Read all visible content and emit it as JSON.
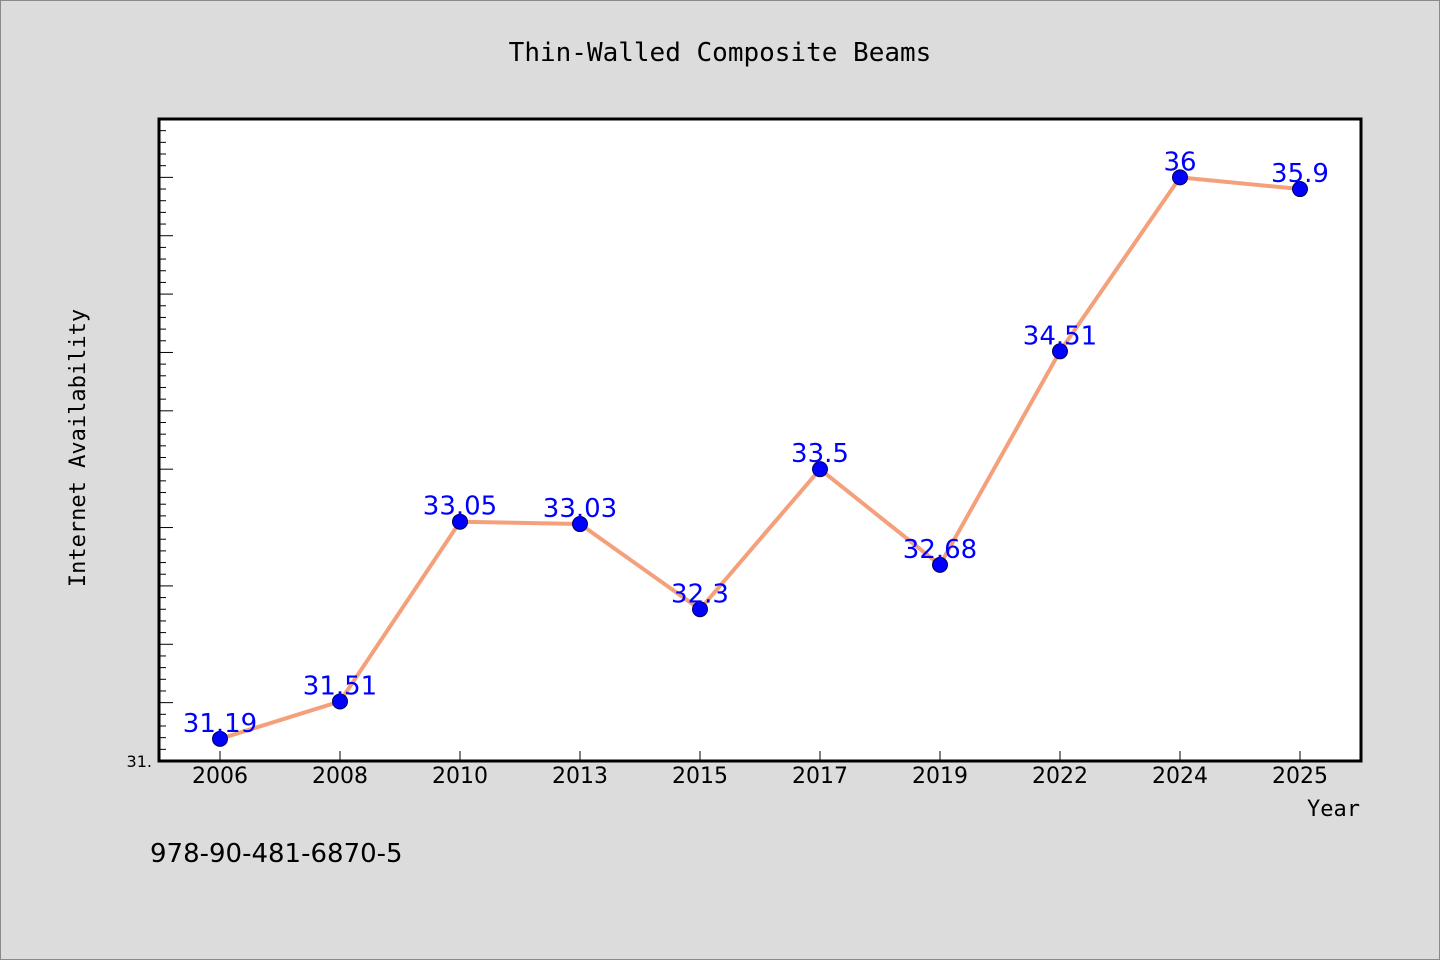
{
  "chart_data": {
    "type": "line",
    "title": "Thin-Walled Composite Beams",
    "xlabel": "Year",
    "ylabel": "Internet Availability",
    "categories": [
      "2006",
      "2008",
      "2010",
      "2013",
      "2015",
      "2017",
      "2019",
      "2022",
      "2024",
      "2025"
    ],
    "series": [
      {
        "values": [
          31.19,
          31.51,
          33.05,
          33.03,
          32.3,
          33.5,
          32.68,
          34.51,
          36,
          35.9
        ],
        "data_labels": [
          "31.19",
          "31.51",
          "33.05",
          "33.03",
          "32.3",
          "33.5",
          "32.68",
          "34.51",
          "36",
          "35.9"
        ],
        "line_color": "#f4a07a",
        "marker_color": "#0000ff",
        "label_color": "#0000ff"
      }
    ],
    "ylim": [
      31,
      36.5
    ],
    "y_tick_labels": [
      "31."
    ],
    "grid": false,
    "legend": "none"
  },
  "footer_text": "978-90-481-6870-5",
  "colors": {
    "background": "#dcdcdc",
    "plot_background": "#ffffff",
    "axis": "#000000",
    "text": "#000000"
  }
}
